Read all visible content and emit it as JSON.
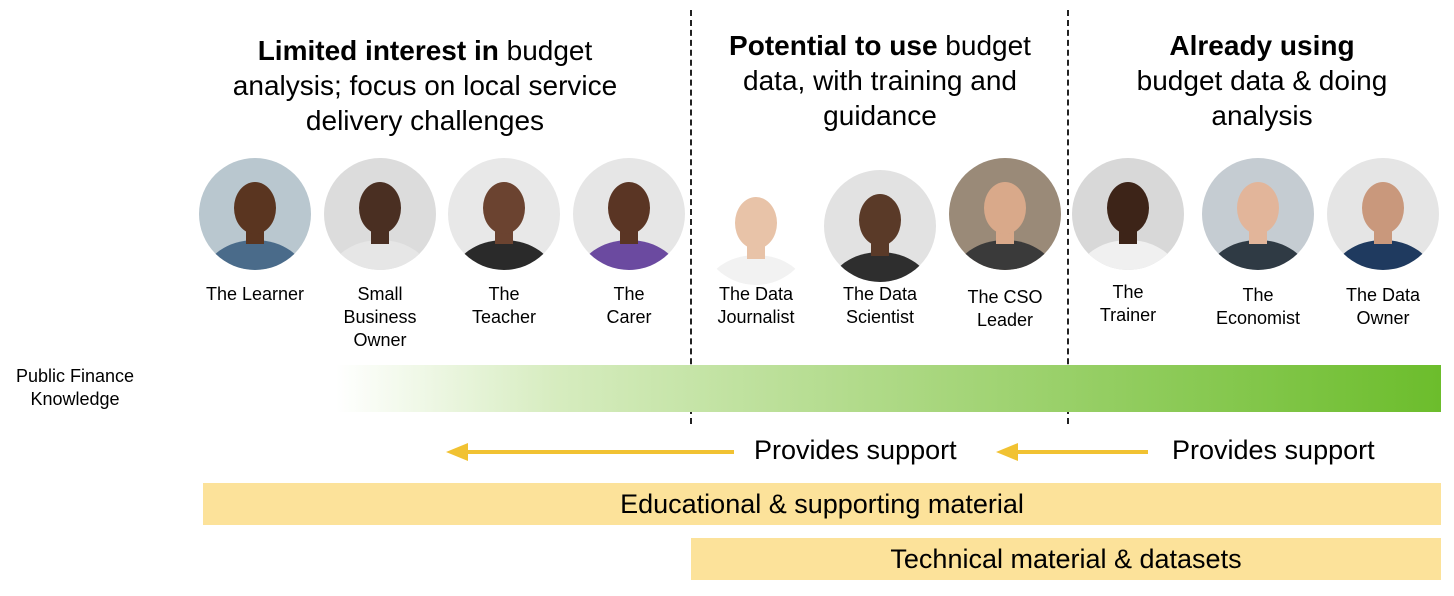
{
  "headings": [
    {
      "bold": "Limited interest in",
      "rest_line1": " budget",
      "line2": "analysis; focus on local service",
      "line3": "delivery challenges"
    },
    {
      "bold": "Potential to use",
      "rest_line1": " budget",
      "line2": "data, with training and",
      "line3": "guidance"
    },
    {
      "bold": "Already using",
      "rest_line1": "",
      "line2": "budget data & doing",
      "line3": "analysis"
    }
  ],
  "personas": [
    {
      "lines": [
        "The Learner"
      ],
      "shirt": "#4a6b8a",
      "skin": "#5a3520",
      "bg": "#b9c7cf"
    },
    {
      "lines": [
        "Small",
        "Business",
        "Owner"
      ],
      "shirt": "#e6e6e6",
      "skin": "#4a2f22",
      "bg": "#dcdcdc"
    },
    {
      "lines": [
        "The",
        "Teacher"
      ],
      "shirt": "#2a2a2a",
      "skin": "#6b4330",
      "bg": "#e8e8e8"
    },
    {
      "lines": [
        "The",
        "Carer"
      ],
      "shirt": "#6b4aa0",
      "skin": "#5a3524",
      "bg": "#e6e6e6"
    },
    {
      "lines": [
        "The Data",
        "Journalist"
      ],
      "shirt": "#f2f2f2",
      "skin": "#e8c3a8",
      "bg": "#ffffff"
    },
    {
      "lines": [
        "The Data",
        "Scientist"
      ],
      "shirt": "#2e2e2e",
      "skin": "#5a3a28",
      "bg": "#e2e2e2"
    },
    {
      "lines": [
        "The CSO",
        "Leader"
      ],
      "shirt": "#3a3a3a",
      "skin": "#d9a98a",
      "bg": "#9a8a78"
    },
    {
      "lines": [
        "The",
        "Trainer"
      ],
      "shirt": "#f0f0f0",
      "skin": "#3d2418",
      "bg": "#d8d8d8"
    },
    {
      "lines": [
        "The",
        "Economist"
      ],
      "shirt": "#2f3a44",
      "skin": "#e2b59a",
      "bg": "#c5ccd2"
    },
    {
      "lines": [
        "The Data",
        "Owner"
      ],
      "shirt": "#1f3a5f",
      "skin": "#c9987c",
      "bg": "#e5e5e5"
    }
  ],
  "axis_label": [
    "Public Finance",
    "Knowledge"
  ],
  "support": [
    "Provides support",
    "Provides support"
  ],
  "bands": {
    "educational": "Educational & supporting material",
    "technical": "Technical material & datasets"
  },
  "colors": {
    "arrow": "#f1c232",
    "band": "#fce29a",
    "bar_end": "#6cbd2c"
  }
}
